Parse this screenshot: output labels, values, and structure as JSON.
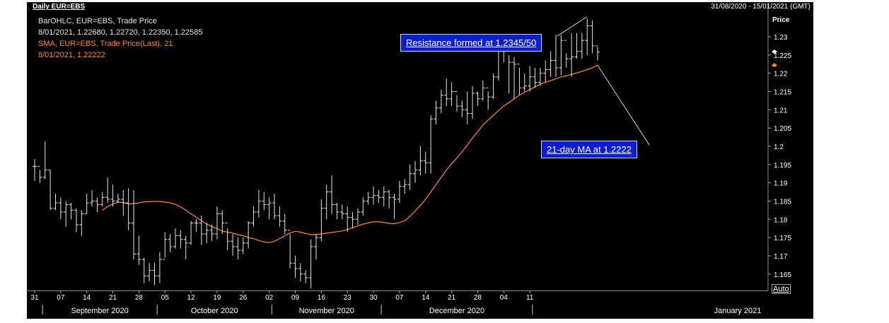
{
  "header": {
    "title": "Daily EUR=EBS",
    "date_range": "31/08/2020 - 15/01/2021 (GMT)"
  },
  "legend": {
    "line1": "BarOHLC, EUR=EBS, Trade Price",
    "line2": "8/01/2021, 1.22680, 1.22720, 1.22350, 1.22585",
    "line3": "SMA, EUR=EBS, Trade Price(Last),  21",
    "line4": "8/01/2021, 1.22222"
  },
  "annotations": {
    "resistance": "Resistance formed at 1.2345/50",
    "ma": "21-day MA at 1.2222"
  },
  "auto_label": "Auto",
  "colors": {
    "bars": "#e6e6e6",
    "sma": "#ff8c1a",
    "annotation_bg": "#0b1fd0",
    "background": "#000000"
  },
  "chart_data": {
    "type": "ohlc",
    "ylabel": "Price",
    "ylim": [
      1.1605,
      1.236
    ],
    "y_ticks": [
      "1.23",
      "1.225",
      "1.22",
      "1.215",
      "1.21",
      "1.205",
      "1.2",
      "1.195",
      "1.19",
      "1.185",
      "1.18",
      "1.175",
      "1.17",
      "1.165"
    ],
    "x_ticks": [
      "31",
      "07",
      "14",
      "21",
      "28",
      "05",
      "12",
      "19",
      "26",
      "02",
      "09",
      "16",
      "23",
      "30",
      "07",
      "14",
      "21",
      "28",
      "04",
      "11"
    ],
    "months": [
      "September 2020",
      "October 2020",
      "November 2020",
      "December 2020",
      "January 2021"
    ],
    "current_markers": [
      1.2259,
      1.2222
    ],
    "bars": [
      {
        "h": 1.1965,
        "l": 1.1905,
        "c": 1.1945
      },
      {
        "h": 1.1935,
        "l": 1.19,
        "c": 1.1915
      },
      {
        "h": 1.2013,
        "l": 1.191,
        "c": 1.1935
      },
      {
        "h": 1.1935,
        "l": 1.1825,
        "c": 1.183
      },
      {
        "h": 1.187,
        "l": 1.1825,
        "c": 1.1845
      },
      {
        "h": 1.186,
        "l": 1.18,
        "c": 1.182
      },
      {
        "h": 1.185,
        "l": 1.178,
        "c": 1.184
      },
      {
        "h": 1.1845,
        "l": 1.18,
        "c": 1.1825
      },
      {
        "h": 1.183,
        "l": 1.1765,
        "c": 1.1785
      },
      {
        "h": 1.1825,
        "l": 1.1755,
        "c": 1.1815
      },
      {
        "h": 1.187,
        "l": 1.1815,
        "c": 1.1845
      },
      {
        "h": 1.188,
        "l": 1.1835,
        "c": 1.185
      },
      {
        "h": 1.186,
        "l": 1.182,
        "c": 1.184
      },
      {
        "h": 1.1875,
        "l": 1.1835,
        "c": 1.186
      },
      {
        "h": 1.1915,
        "l": 1.1845,
        "c": 1.1855
      },
      {
        "h": 1.1895,
        "l": 1.1835,
        "c": 1.185
      },
      {
        "h": 1.187,
        "l": 1.1845,
        "c": 1.1855
      },
      {
        "h": 1.188,
        "l": 1.181,
        "c": 1.1845
      },
      {
        "h": 1.1885,
        "l": 1.177,
        "c": 1.179
      },
      {
        "h": 1.188,
        "l": 1.169,
        "c": 1.1705
      },
      {
        "h": 1.1755,
        "l": 1.1675,
        "c": 1.169
      },
      {
        "h": 1.1695,
        "l": 1.1625,
        "c": 1.1645
      },
      {
        "h": 1.168,
        "l": 1.163,
        "c": 1.166
      },
      {
        "h": 1.168,
        "l": 1.162,
        "c": 1.1645
      },
      {
        "h": 1.171,
        "l": 1.1625,
        "c": 1.169
      },
      {
        "h": 1.1765,
        "l": 1.1695,
        "c": 1.1745
      },
      {
        "h": 1.176,
        "l": 1.171,
        "c": 1.1725
      },
      {
        "h": 1.1775,
        "l": 1.172,
        "c": 1.1755
      },
      {
        "h": 1.177,
        "l": 1.172,
        "c": 1.1745
      },
      {
        "h": 1.1755,
        "l": 1.169,
        "c": 1.1735
      },
      {
        "h": 1.1795,
        "l": 1.173,
        "c": 1.179
      },
      {
        "h": 1.18,
        "l": 1.1765,
        "c": 1.179
      },
      {
        "h": 1.181,
        "l": 1.173,
        "c": 1.176
      },
      {
        "h": 1.179,
        "l": 1.1735,
        "c": 1.177
      },
      {
        "h": 1.1785,
        "l": 1.174,
        "c": 1.176
      },
      {
        "h": 1.1835,
        "l": 1.1745,
        "c": 1.1815
      },
      {
        "h": 1.1825,
        "l": 1.176,
        "c": 1.179
      },
      {
        "h": 1.1775,
        "l": 1.1715,
        "c": 1.174
      },
      {
        "h": 1.176,
        "l": 1.17,
        "c": 1.1725
      },
      {
        "h": 1.175,
        "l": 1.169,
        "c": 1.1715
      },
      {
        "h": 1.175,
        "l": 1.1705,
        "c": 1.1735
      },
      {
        "h": 1.1795,
        "l": 1.172,
        "c": 1.179
      },
      {
        "h": 1.1835,
        "l": 1.178,
        "c": 1.182
      },
      {
        "h": 1.188,
        "l": 1.1805,
        "c": 1.185
      },
      {
        "h": 1.1875,
        "l": 1.1825,
        "c": 1.184
      },
      {
        "h": 1.186,
        "l": 1.18,
        "c": 1.1845
      },
      {
        "h": 1.187,
        "l": 1.18,
        "c": 1.181
      },
      {
        "h": 1.1835,
        "l": 1.178,
        "c": 1.1795
      },
      {
        "h": 1.1815,
        "l": 1.176,
        "c": 1.177
      },
      {
        "h": 1.176,
        "l": 1.1665,
        "c": 1.168
      },
      {
        "h": 1.17,
        "l": 1.164,
        "c": 1.1665
      },
      {
        "h": 1.168,
        "l": 1.163,
        "c": 1.165
      },
      {
        "h": 1.166,
        "l": 1.1625,
        "c": 1.164
      },
      {
        "h": 1.1745,
        "l": 1.161,
        "c": 1.1725
      },
      {
        "h": 1.176,
        "l": 1.169,
        "c": 1.175
      },
      {
        "h": 1.1855,
        "l": 1.174,
        "c": 1.183
      },
      {
        "h": 1.1895,
        "l": 1.18,
        "c": 1.1875
      },
      {
        "h": 1.192,
        "l": 1.1815,
        "c": 1.184
      },
      {
        "h": 1.1845,
        "l": 1.18,
        "c": 1.182
      },
      {
        "h": 1.184,
        "l": 1.18,
        "c": 1.1815
      },
      {
        "h": 1.1835,
        "l": 1.1765,
        "c": 1.1805
      },
      {
        "h": 1.182,
        "l": 1.1775,
        "c": 1.18
      },
      {
        "h": 1.183,
        "l": 1.1785,
        "c": 1.182
      },
      {
        "h": 1.186,
        "l": 1.181,
        "c": 1.185
      },
      {
        "h": 1.1875,
        "l": 1.184,
        "c": 1.186
      },
      {
        "h": 1.189,
        "l": 1.184,
        "c": 1.1865
      },
      {
        "h": 1.188,
        "l": 1.1845,
        "c": 1.186
      },
      {
        "h": 1.189,
        "l": 1.1835,
        "c": 1.1875
      },
      {
        "h": 1.188,
        "l": 1.183,
        "c": 1.186
      },
      {
        "h": 1.187,
        "l": 1.18,
        "c": 1.1855
      },
      {
        "h": 1.1905,
        "l": 1.1845,
        "c": 1.189
      },
      {
        "h": 1.191,
        "l": 1.187,
        "c": 1.1895
      },
      {
        "h": 1.195,
        "l": 1.188,
        "c": 1.1925
      },
      {
        "h": 1.196,
        "l": 1.19,
        "c": 1.1935
      },
      {
        "h": 1.2,
        "l": 1.192,
        "c": 1.196
      },
      {
        "h": 1.1985,
        "l": 1.1925,
        "c": 1.1955
      },
      {
        "h": 1.2085,
        "l": 1.1925,
        "c": 1.2075
      },
      {
        "h": 1.2125,
        "l": 1.206,
        "c": 1.2105
      },
      {
        "h": 1.2155,
        "l": 1.209,
        "c": 1.214
      },
      {
        "h": 1.2185,
        "l": 1.211,
        "c": 1.213
      },
      {
        "h": 1.2175,
        "l": 1.211,
        "c": 1.215
      },
      {
        "h": 1.214,
        "l": 1.2095,
        "c": 1.211
      },
      {
        "h": 1.2125,
        "l": 1.208,
        "c": 1.21
      },
      {
        "h": 1.215,
        "l": 1.206,
        "c": 1.209
      },
      {
        "h": 1.2165,
        "l": 1.2075,
        "c": 1.2145
      },
      {
        "h": 1.215,
        "l": 1.211,
        "c": 1.213
      },
      {
        "h": 1.218,
        "l": 1.2125,
        "c": 1.216
      },
      {
        "h": 1.215,
        "l": 1.21,
        "c": 1.2135
      },
      {
        "h": 1.22,
        "l": 1.213,
        "c": 1.219
      },
      {
        "h": 1.2275,
        "l": 1.218,
        "c": 1.226
      },
      {
        "h": 1.2275,
        "l": 1.223,
        "c": 1.226
      },
      {
        "h": 1.225,
        "l": 1.2145,
        "c": 1.223
      },
      {
        "h": 1.2245,
        "l": 1.213,
        "c": 1.2225
      },
      {
        "h": 1.2215,
        "l": 1.214,
        "c": 1.216
      },
      {
        "h": 1.22,
        "l": 1.215,
        "c": 1.2165
      },
      {
        "h": 1.222,
        "l": 1.215,
        "c": 1.219
      },
      {
        "h": 1.2215,
        "l": 1.216,
        "c": 1.2175
      },
      {
        "h": 1.2215,
        "l": 1.2165,
        "c": 1.22
      },
      {
        "h": 1.2235,
        "l": 1.2175,
        "c": 1.221
      },
      {
        "h": 1.226,
        "l": 1.219,
        "c": 1.2235
      },
      {
        "h": 1.2305,
        "l": 1.219,
        "c": 1.2215
      },
      {
        "h": 1.2305,
        "l": 1.2195,
        "c": 1.229
      },
      {
        "h": 1.2255,
        "l": 1.2215,
        "c": 1.224
      },
      {
        "h": 1.231,
        "l": 1.219,
        "c": 1.2245
      },
      {
        "h": 1.231,
        "l": 1.224,
        "c": 1.226
      },
      {
        "h": 1.231,
        "l": 1.224,
        "c": 1.229
      },
      {
        "h": 1.235,
        "l": 1.225,
        "c": 1.233
      },
      {
        "h": 1.2345,
        "l": 1.2255,
        "c": 1.2275
      },
      {
        "h": 1.2272,
        "l": 1.2235,
        "c": 1.2258
      }
    ],
    "sma": [
      1.1825,
      1.1835,
      1.1842,
      1.1847,
      1.1846,
      1.1842,
      1.1843,
      1.1845,
      1.1848,
      1.1848,
      1.1849,
      1.1849,
      1.1847,
      1.1845,
      1.1841,
      1.1834,
      1.1825,
      1.1815,
      1.1806,
      1.1796,
      1.1787,
      1.178,
      1.1774,
      1.1768,
      1.1765,
      1.1762,
      1.1758,
      1.1755,
      1.175,
      1.1747,
      1.1742,
      1.1738,
      1.1736,
      1.174,
      1.1747,
      1.1755,
      1.1763,
      1.1767,
      1.1765,
      1.1761,
      1.1758,
      1.1758,
      1.176,
      1.1762,
      1.1764,
      1.1766,
      1.1768,
      1.1772,
      1.1777,
      1.1782,
      1.1787,
      1.179,
      1.1793,
      1.1793,
      1.1791,
      1.1789,
      1.1788,
      1.1791,
      1.1796,
      1.1808,
      1.1823,
      1.1838,
      1.1855,
      1.1875,
      1.1895,
      1.1915,
      1.1935,
      1.1952,
      1.1968,
      1.1985,
      1.2003,
      1.2023,
      1.204,
      1.2058,
      1.2072,
      1.2085,
      1.2098,
      1.211,
      1.212,
      1.213,
      1.214,
      1.2148,
      1.2155,
      1.2163,
      1.217,
      1.2175,
      1.218,
      1.2185,
      1.219,
      1.2193,
      1.2197,
      1.2201,
      1.2205,
      1.221,
      1.2215,
      1.2222
    ]
  }
}
